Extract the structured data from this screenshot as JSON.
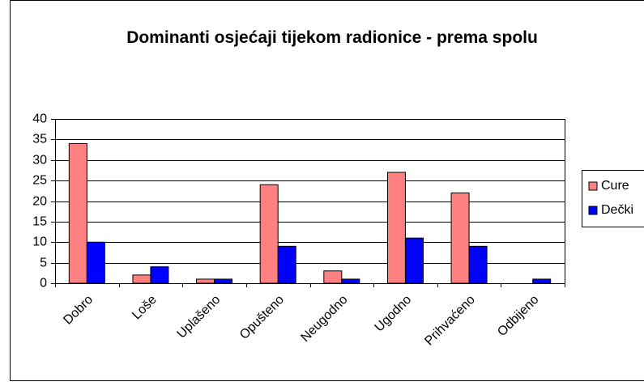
{
  "chart_data": {
    "type": "bar",
    "title": "Dominanti osjećaji tijekom radionice - prema spolu",
    "categories": [
      "Dobro",
      "Loše",
      "Uplašeno",
      "Opušteno",
      "Neugodno",
      "Ugodno",
      "Prihvaćeno",
      "Odbijeno"
    ],
    "series": [
      {
        "name": "Cure",
        "color": "#ff8080",
        "values": [
          34,
          2,
          1,
          24,
          3,
          27,
          22,
          0
        ]
      },
      {
        "name": "Dečki",
        "color": "#0000ff",
        "values": [
          10,
          4,
          1,
          9,
          1,
          11,
          9,
          1
        ]
      }
    ],
    "ylim": [
      0,
      40
    ],
    "yticks": [
      0,
      5,
      10,
      15,
      20,
      25,
      30,
      35,
      40
    ],
    "grid": true,
    "legend": "right"
  }
}
